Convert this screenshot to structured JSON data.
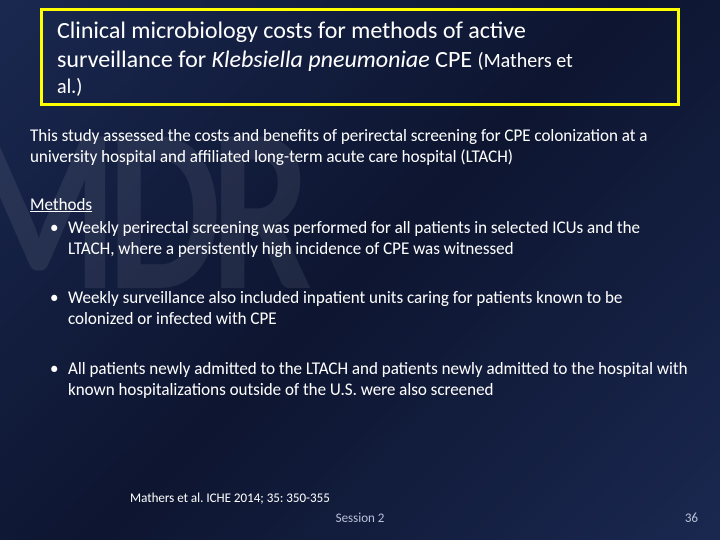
{
  "colors": {
    "title_border": "#ffff00",
    "text": "#ffffff",
    "footer_text": "#b8c0d8",
    "bg_start": "#1a2850",
    "bg_mid": "#0d1530"
  },
  "title": {
    "line1": "Clinical microbiology costs for methods of active",
    "line2_part1": "surveillance for ",
    "line2_italic": "Klebsiella pneumoniae",
    "line2_part2": " CPE ",
    "line2_small": "(Mathers et",
    "line3_small": "al.)"
  },
  "intro": "This study assessed the costs and benefits of perirectal screening for CPE colonization at a university hospital and affiliated long-term acute care hospital (LTACH)",
  "methods_label": "Methods",
  "bullets": {
    "b1": "Weekly perirectal screening was performed for all patients in selected ICUs and the LTACH, where a persistently high incidence of CPE was witnessed",
    "b2": "Weekly surveillance also included inpatient units caring for patients known to be colonized or infected with CPE",
    "b3": "All patients newly admitted to the LTACH and patients newly admitted to the hospital with known hospitalizations outside of the U.S. were also screened"
  },
  "citation": "Mathers et al. ICHE 2014; 35: 350-355",
  "session": "Session 2",
  "page_number": "36"
}
